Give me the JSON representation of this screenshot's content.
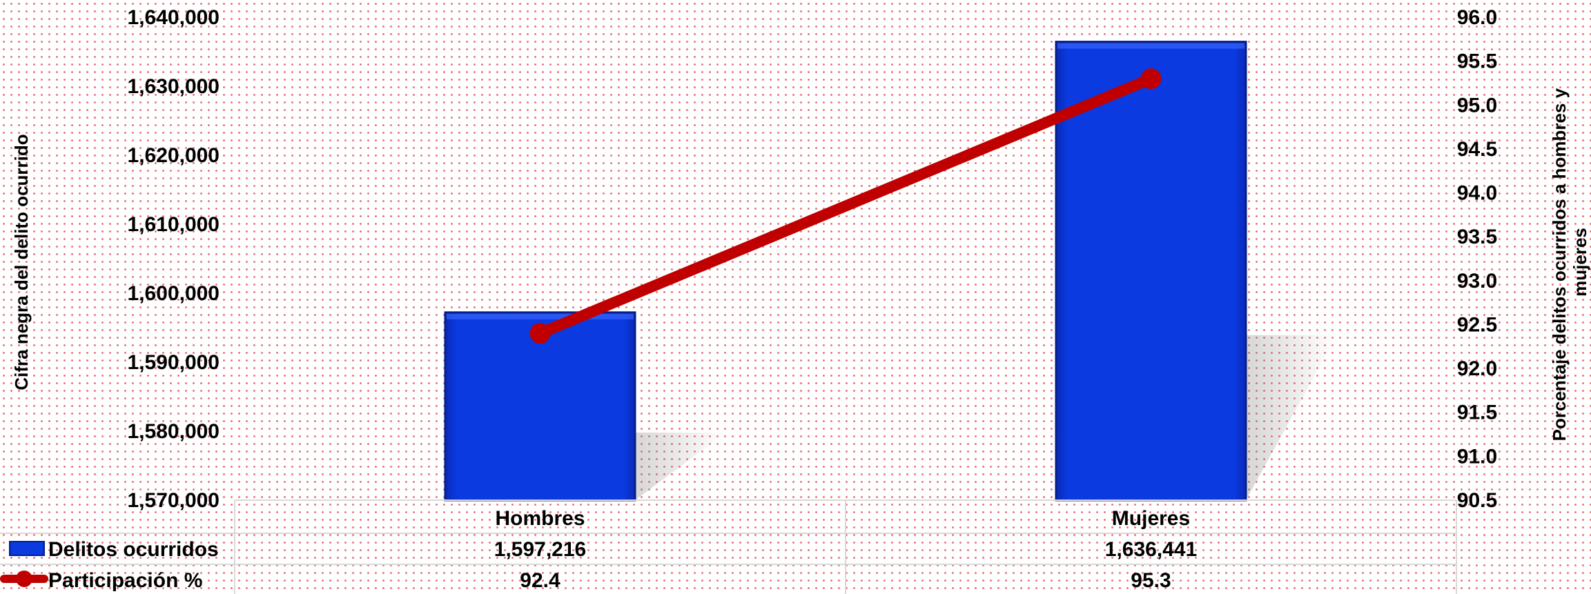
{
  "chart_data": {
    "type": "bar",
    "categories": [
      "Hombres",
      "Mujeres"
    ],
    "series": [
      {
        "name": "Delitos ocurridos",
        "kind": "bar",
        "axis": "left",
        "color": "#0a35d6",
        "values": [
          1597216,
          1636441
        ],
        "labels": [
          "1,597,216",
          "1,636,441"
        ]
      },
      {
        "name": "Participación %",
        "kind": "line",
        "axis": "right",
        "color": "#c00000",
        "values": [
          92.4,
          95.3
        ],
        "labels": [
          "92.4",
          "95.3"
        ]
      }
    ],
    "y_left": {
      "label": "Cifra negra del delito ocurrido",
      "lim": [
        1570000,
        1640000
      ],
      "ticks": [
        1570000,
        1580000,
        1590000,
        1600000,
        1610000,
        1620000,
        1630000,
        1640000
      ],
      "tick_labels": [
        "1,570,000",
        "1,580,000",
        "1,590,000",
        "1,600,000",
        "1,610,000",
        "1,620,000",
        "1,630,000",
        "1,640,000"
      ]
    },
    "y_right": {
      "label_lines": [
        "Porcentaje delitos ocurridos a hombres y",
        "mujeres"
      ],
      "lim": [
        90.5,
        96.0
      ],
      "ticks": [
        90.5,
        91.0,
        91.5,
        92.0,
        92.5,
        93.0,
        93.5,
        94.0,
        94.5,
        95.0,
        95.5,
        96.0
      ],
      "tick_labels": [
        "90.5",
        "91.0",
        "91.5",
        "92.0",
        "92.5",
        "93.0",
        "93.5",
        "94.0",
        "94.5",
        "95.0",
        "95.5",
        "96.0"
      ]
    },
    "grid": false,
    "legend": "data-table"
  }
}
